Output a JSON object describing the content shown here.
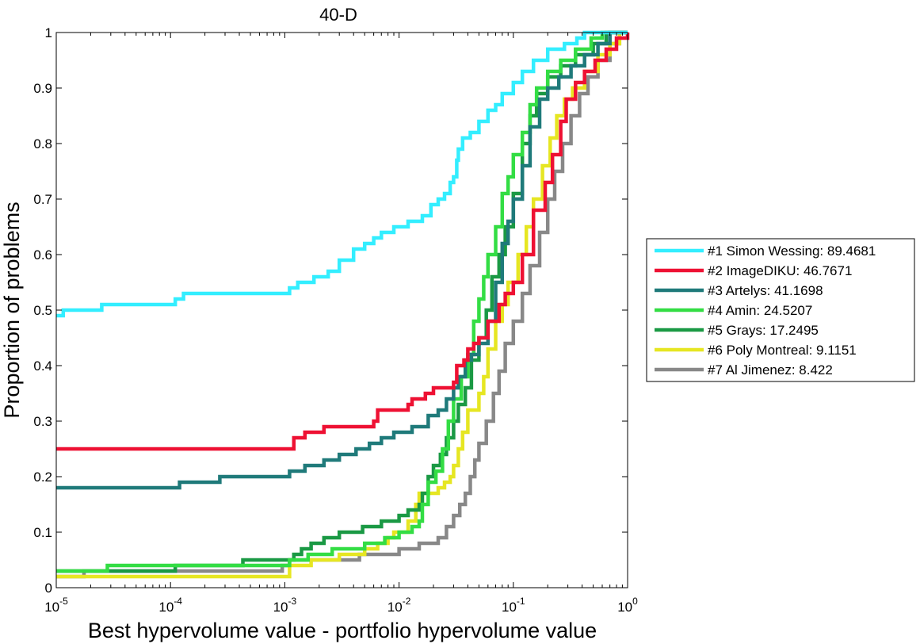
{
  "chart_data": {
    "type": "line",
    "title": "40-D",
    "xlabel": "Best hypervolume value - portfolio hypervolume value",
    "ylabel": "Proportion of problems",
    "xscale": "log",
    "xlim": [
      1e-05,
      1
    ],
    "ylim": [
      0,
      1
    ],
    "xtick_base": "10",
    "xtick_exponents": [
      "-5",
      "-4",
      "-3",
      "-2",
      "-1",
      "0"
    ],
    "yticks": [
      "0",
      "0.1",
      "0.2",
      "0.3",
      "0.4",
      "0.5",
      "0.6",
      "0.7",
      "0.8",
      "0.9",
      "1"
    ],
    "grid": false,
    "legend_position": "right",
    "series": [
      {
        "name": "#1 Simon Wessing: 89.4681",
        "color": "#33eeff",
        "points": [
          [
            1e-05,
            0.49
          ],
          [
            1.15e-05,
            0.5
          ],
          [
            2.5e-05,
            0.51
          ],
          [
            0.00011,
            0.52
          ],
          [
            0.00013,
            0.53
          ],
          [
            0.00017,
            0.53
          ],
          [
            0.0011,
            0.54
          ],
          [
            0.0013,
            0.55
          ],
          [
            0.0018,
            0.56
          ],
          [
            0.0024,
            0.57
          ],
          [
            0.003,
            0.59
          ],
          [
            0.004,
            0.61
          ],
          [
            0.005,
            0.62
          ],
          [
            0.006,
            0.63
          ],
          [
            0.007,
            0.64
          ],
          [
            0.009,
            0.65
          ],
          [
            0.012,
            0.66
          ],
          [
            0.016,
            0.67
          ],
          [
            0.019,
            0.69
          ],
          [
            0.022,
            0.7
          ],
          [
            0.025,
            0.71
          ],
          [
            0.028,
            0.73
          ],
          [
            0.03,
            0.74
          ],
          [
            0.032,
            0.77
          ],
          [
            0.033,
            0.79
          ],
          [
            0.036,
            0.81
          ],
          [
            0.042,
            0.82
          ],
          [
            0.05,
            0.84
          ],
          [
            0.06,
            0.86
          ],
          [
            0.07,
            0.87
          ],
          [
            0.08,
            0.89
          ],
          [
            0.1,
            0.91
          ],
          [
            0.12,
            0.93
          ],
          [
            0.15,
            0.95
          ],
          [
            0.2,
            0.97
          ],
          [
            0.28,
            0.98
          ],
          [
            0.36,
            0.99
          ],
          [
            0.42,
            1.0
          ],
          [
            1,
            1.0
          ]
        ]
      },
      {
        "name": "#2 ImageDIKU: 46.7671",
        "color": "#ee1133",
        "points": [
          [
            1e-05,
            0.25
          ],
          [
            0.001,
            0.25
          ],
          [
            0.0012,
            0.27
          ],
          [
            0.0015,
            0.28
          ],
          [
            0.0022,
            0.29
          ],
          [
            0.003,
            0.29
          ],
          [
            0.006,
            0.3
          ],
          [
            0.0065,
            0.32
          ],
          [
            0.012,
            0.33
          ],
          [
            0.013,
            0.34
          ],
          [
            0.017,
            0.35
          ],
          [
            0.02,
            0.36
          ],
          [
            0.03,
            0.37
          ],
          [
            0.032,
            0.4
          ],
          [
            0.037,
            0.41
          ],
          [
            0.04,
            0.43
          ],
          [
            0.045,
            0.44
          ],
          [
            0.05,
            0.45
          ],
          [
            0.06,
            0.48
          ],
          [
            0.075,
            0.51
          ],
          [
            0.085,
            0.53
          ],
          [
            0.1,
            0.55
          ],
          [
            0.12,
            0.6
          ],
          [
            0.15,
            0.68
          ],
          [
            0.19,
            0.73
          ],
          [
            0.22,
            0.78
          ],
          [
            0.26,
            0.84
          ],
          [
            0.29,
            0.88
          ],
          [
            0.35,
            0.91
          ],
          [
            0.42,
            0.93
          ],
          [
            0.52,
            0.95
          ],
          [
            0.65,
            0.97
          ],
          [
            0.8,
            0.99
          ],
          [
            1,
            1.0
          ]
        ]
      },
      {
        "name": "#3 Artelys: 41.1698",
        "color": "#1f7a7a",
        "points": [
          [
            1e-05,
            0.18
          ],
          [
            0.00011,
            0.18
          ],
          [
            0.00012,
            0.19
          ],
          [
            0.00027,
            0.2
          ],
          [
            0.0011,
            0.21
          ],
          [
            0.0015,
            0.22
          ],
          [
            0.0022,
            0.23
          ],
          [
            0.003,
            0.24
          ],
          [
            0.0042,
            0.25
          ],
          [
            0.0055,
            0.26
          ],
          [
            0.007,
            0.27
          ],
          [
            0.009,
            0.28
          ],
          [
            0.013,
            0.29
          ],
          [
            0.018,
            0.31
          ],
          [
            0.022,
            0.32
          ],
          [
            0.026,
            0.34
          ],
          [
            0.03,
            0.36
          ],
          [
            0.033,
            0.38
          ],
          [
            0.038,
            0.41
          ],
          [
            0.043,
            0.42
          ],
          [
            0.05,
            0.44
          ],
          [
            0.06,
            0.48
          ],
          [
            0.07,
            0.55
          ],
          [
            0.08,
            0.62
          ],
          [
            0.09,
            0.66
          ],
          [
            0.1,
            0.7
          ],
          [
            0.12,
            0.76
          ],
          [
            0.14,
            0.83
          ],
          [
            0.17,
            0.88
          ],
          [
            0.2,
            0.9
          ],
          [
            0.25,
            0.92
          ],
          [
            0.32,
            0.94
          ],
          [
            0.42,
            0.96
          ],
          [
            0.55,
            0.98
          ],
          [
            0.7,
            1.0
          ],
          [
            1,
            1.0
          ]
        ]
      },
      {
        "name": "#4 Amin: 24.5207",
        "color": "#33dd44",
        "points": [
          [
            1e-05,
            0.03
          ],
          [
            2.3e-05,
            0.03
          ],
          [
            2.8e-05,
            0.04
          ],
          [
            0.0011,
            0.05
          ],
          [
            0.0016,
            0.06
          ],
          [
            0.0026,
            0.07
          ],
          [
            0.005,
            0.08
          ],
          [
            0.0075,
            0.09
          ],
          [
            0.01,
            0.1
          ],
          [
            0.013,
            0.11
          ],
          [
            0.015,
            0.12
          ],
          [
            0.016,
            0.15
          ],
          [
            0.018,
            0.19
          ],
          [
            0.021,
            0.21
          ],
          [
            0.024,
            0.25
          ],
          [
            0.027,
            0.3
          ],
          [
            0.03,
            0.34
          ],
          [
            0.035,
            0.38
          ],
          [
            0.04,
            0.42
          ],
          [
            0.045,
            0.48
          ],
          [
            0.05,
            0.52
          ],
          [
            0.055,
            0.56
          ],
          [
            0.06,
            0.6
          ],
          [
            0.07,
            0.65
          ],
          [
            0.08,
            0.71
          ],
          [
            0.09,
            0.74
          ],
          [
            0.1,
            0.78
          ],
          [
            0.12,
            0.82
          ],
          [
            0.14,
            0.87
          ],
          [
            0.16,
            0.9
          ],
          [
            0.2,
            0.93
          ],
          [
            0.26,
            0.95
          ],
          [
            0.35,
            0.97
          ],
          [
            0.48,
            0.99
          ],
          [
            0.6,
            1.0
          ],
          [
            1,
            1.0
          ]
        ]
      },
      {
        "name": "#5 Grays: 17.2495",
        "color": "#1a9944",
        "points": [
          [
            1e-05,
            0.03
          ],
          [
            0.00011,
            0.04
          ],
          [
            0.00043,
            0.05
          ],
          [
            0.0012,
            0.06
          ],
          [
            0.0014,
            0.07
          ],
          [
            0.0017,
            0.08
          ],
          [
            0.0022,
            0.09
          ],
          [
            0.003,
            0.1
          ],
          [
            0.0048,
            0.11
          ],
          [
            0.007,
            0.12
          ],
          [
            0.01,
            0.13
          ],
          [
            0.012,
            0.14
          ],
          [
            0.015,
            0.15
          ],
          [
            0.016,
            0.17
          ],
          [
            0.018,
            0.2
          ],
          [
            0.02,
            0.22
          ],
          [
            0.023,
            0.24
          ],
          [
            0.026,
            0.27
          ],
          [
            0.03,
            0.3
          ],
          [
            0.033,
            0.33
          ],
          [
            0.038,
            0.36
          ],
          [
            0.043,
            0.41
          ],
          [
            0.05,
            0.45
          ],
          [
            0.058,
            0.5
          ],
          [
            0.065,
            0.56
          ],
          [
            0.075,
            0.6
          ],
          [
            0.085,
            0.65
          ],
          [
            0.1,
            0.71
          ],
          [
            0.12,
            0.8
          ],
          [
            0.14,
            0.85
          ],
          [
            0.16,
            0.89
          ],
          [
            0.2,
            0.92
          ],
          [
            0.26,
            0.94
          ],
          [
            0.35,
            0.96
          ],
          [
            0.5,
            0.98
          ],
          [
            0.65,
            1.0
          ],
          [
            1,
            1.0
          ]
        ]
      },
      {
        "name": "#6 Poly Montreal: 9.1151",
        "color": "#e6e622",
        "points": [
          [
            1e-05,
            0.02
          ],
          [
            0.001,
            0.02
          ],
          [
            0.0011,
            0.04
          ],
          [
            0.0017,
            0.05
          ],
          [
            0.003,
            0.06
          ],
          [
            0.005,
            0.07
          ],
          [
            0.0065,
            0.08
          ],
          [
            0.008,
            0.09
          ],
          [
            0.009,
            0.1
          ],
          [
            0.012,
            0.12
          ],
          [
            0.014,
            0.15
          ],
          [
            0.015,
            0.17
          ],
          [
            0.02,
            0.17
          ],
          [
            0.022,
            0.18
          ],
          [
            0.025,
            0.19
          ],
          [
            0.028,
            0.2
          ],
          [
            0.03,
            0.22
          ],
          [
            0.033,
            0.25
          ],
          [
            0.036,
            0.28
          ],
          [
            0.04,
            0.32
          ],
          [
            0.05,
            0.35
          ],
          [
            0.055,
            0.38
          ],
          [
            0.06,
            0.43
          ],
          [
            0.07,
            0.48
          ],
          [
            0.08,
            0.51
          ],
          [
            0.09,
            0.55
          ],
          [
            0.11,
            0.6
          ],
          [
            0.13,
            0.65
          ],
          [
            0.15,
            0.7
          ],
          [
            0.18,
            0.76
          ],
          [
            0.21,
            0.81
          ],
          [
            0.24,
            0.85
          ],
          [
            0.28,
            0.88
          ],
          [
            0.33,
            0.9
          ],
          [
            0.42,
            0.93
          ],
          [
            0.55,
            0.96
          ],
          [
            0.7,
            0.98
          ],
          [
            0.85,
            1.0
          ],
          [
            1,
            1.0
          ]
        ]
      },
      {
        "name": "#7 Al Jimenez: 8.422",
        "color": "#888888",
        "points": [
          [
            1e-05,
            0.02
          ],
          [
            1.75e-05,
            0.03
          ],
          [
            0.00095,
            0.04
          ],
          [
            0.0011,
            0.05
          ],
          [
            0.003,
            0.05
          ],
          [
            0.0045,
            0.06
          ],
          [
            0.007,
            0.06
          ],
          [
            0.01,
            0.07
          ],
          [
            0.015,
            0.08
          ],
          [
            0.022,
            0.09
          ],
          [
            0.026,
            0.11
          ],
          [
            0.03,
            0.13
          ],
          [
            0.034,
            0.15
          ],
          [
            0.038,
            0.17
          ],
          [
            0.042,
            0.2
          ],
          [
            0.046,
            0.23
          ],
          [
            0.05,
            0.26
          ],
          [
            0.058,
            0.3
          ],
          [
            0.067,
            0.35
          ],
          [
            0.075,
            0.39
          ],
          [
            0.085,
            0.44
          ],
          [
            0.1,
            0.48
          ],
          [
            0.12,
            0.53
          ],
          [
            0.14,
            0.58
          ],
          [
            0.17,
            0.64
          ],
          [
            0.2,
            0.7
          ],
          [
            0.23,
            0.75
          ],
          [
            0.27,
            0.8
          ],
          [
            0.32,
            0.85
          ],
          [
            0.38,
            0.89
          ],
          [
            0.45,
            0.92
          ],
          [
            0.55,
            0.95
          ],
          [
            0.7,
            0.98
          ],
          [
            0.85,
            1.0
          ],
          [
            1,
            1.0
          ]
        ]
      }
    ]
  }
}
